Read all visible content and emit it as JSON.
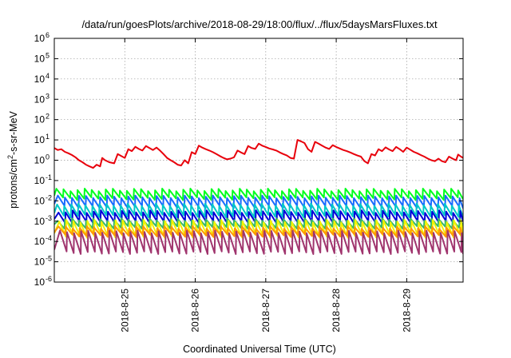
{
  "chart_data": {
    "type": "line",
    "title": "/data/run/goesPlots/archive/2018-08-29/18:00/flux/../flux/5daysMarsFluxes.txt",
    "xlabel": "Coordinated Universal Time (UTC)",
    "ylabel": {
      "base": "protons/cm",
      "sup": "2",
      "rest": "-s-sr-MeV"
    },
    "x_unit": "days since 2018-08-24 00:00 UTC",
    "xlim": [
      0.0,
      5.8
    ],
    "x_ticks": [
      {
        "x": 1,
        "label": "2018-8-25"
      },
      {
        "x": 2,
        "label": "2018-8-26"
      },
      {
        "x": 3,
        "label": "2018-8-27"
      },
      {
        "x": 4,
        "label": "2018-8-28"
      },
      {
        "x": 5,
        "label": "2018-8-29"
      }
    ],
    "yscale": "log",
    "ylim": [
      1e-06,
      1000000.0
    ],
    "y_ticks": [
      {
        "exp": -6,
        "label": "10"
      },
      {
        "exp": -5,
        "label": "10"
      },
      {
        "exp": -4,
        "label": "10"
      },
      {
        "exp": -3,
        "label": "10"
      },
      {
        "exp": -2,
        "label": "10"
      },
      {
        "exp": -1,
        "label": "10"
      },
      {
        "exp": 0,
        "label": "10"
      },
      {
        "exp": 1,
        "label": "10"
      },
      {
        "exp": 2,
        "label": "10"
      },
      {
        "exp": 3,
        "label": "10"
      },
      {
        "exp": 4,
        "label": "10"
      },
      {
        "exp": 5,
        "label": "10"
      },
      {
        "exp": 6,
        "label": "10"
      }
    ],
    "grid": true,
    "legend": "none",
    "series": [
      {
        "color": "#e8000b",
        "sawtooth": false,
        "points": [
          [
            0.0,
            4.0
          ],
          [
            0.05,
            3.2
          ],
          [
            0.1,
            3.5
          ],
          [
            0.15,
            2.6
          ],
          [
            0.2,
            2.2
          ],
          [
            0.25,
            1.8
          ],
          [
            0.3,
            1.4
          ],
          [
            0.35,
            1.0
          ],
          [
            0.4,
            0.8
          ],
          [
            0.45,
            0.6
          ],
          [
            0.5,
            0.5
          ],
          [
            0.55,
            0.42
          ],
          [
            0.6,
            0.6
          ],
          [
            0.65,
            0.5
          ],
          [
            0.68,
            1.3
          ],
          [
            0.72,
            1.0
          ],
          [
            0.78,
            0.8
          ],
          [
            0.85,
            0.7
          ],
          [
            0.9,
            2.0
          ],
          [
            0.95,
            1.6
          ],
          [
            1.0,
            1.3
          ],
          [
            1.05,
            3.5
          ],
          [
            1.1,
            2.8
          ],
          [
            1.15,
            4.6
          ],
          [
            1.2,
            3.6
          ],
          [
            1.25,
            3.0
          ],
          [
            1.3,
            5.0
          ],
          [
            1.35,
            4.0
          ],
          [
            1.4,
            3.2
          ],
          [
            1.45,
            4.2
          ],
          [
            1.5,
            3.0
          ],
          [
            1.55,
            2.0
          ],
          [
            1.6,
            1.3
          ],
          [
            1.65,
            1.0
          ],
          [
            1.7,
            0.8
          ],
          [
            1.75,
            0.6
          ],
          [
            1.8,
            0.55
          ],
          [
            1.85,
            1.0
          ],
          [
            1.9,
            0.7
          ],
          [
            1.95,
            2.5
          ],
          [
            2.0,
            2.0
          ],
          [
            2.05,
            5.2
          ],
          [
            2.1,
            4.2
          ],
          [
            2.15,
            3.5
          ],
          [
            2.2,
            3.0
          ],
          [
            2.25,
            2.5
          ],
          [
            2.3,
            2.0
          ],
          [
            2.35,
            1.6
          ],
          [
            2.4,
            1.3
          ],
          [
            2.45,
            1.1
          ],
          [
            2.5,
            1.2
          ],
          [
            2.55,
            1.4
          ],
          [
            2.6,
            3.0
          ],
          [
            2.65,
            2.4
          ],
          [
            2.7,
            2.0
          ],
          [
            2.75,
            5.0
          ],
          [
            2.8,
            4.0
          ],
          [
            2.85,
            3.6
          ],
          [
            2.9,
            6.5
          ],
          [
            2.95,
            5.2
          ],
          [
            3.0,
            4.5
          ],
          [
            3.05,
            3.8
          ],
          [
            3.1,
            3.4
          ],
          [
            3.15,
            3.0
          ],
          [
            3.2,
            2.4
          ],
          [
            3.25,
            2.0
          ],
          [
            3.3,
            1.7
          ],
          [
            3.35,
            1.3
          ],
          [
            3.4,
            1.2
          ],
          [
            3.45,
            10.0
          ],
          [
            3.5,
            8.5
          ],
          [
            3.55,
            7.0
          ],
          [
            3.6,
            3.5
          ],
          [
            3.65,
            2.6
          ],
          [
            3.7,
            8.0
          ],
          [
            3.75,
            6.5
          ],
          [
            3.8,
            5.2
          ],
          [
            3.85,
            4.2
          ],
          [
            3.9,
            3.6
          ],
          [
            3.95,
            5.5
          ],
          [
            4.0,
            4.5
          ],
          [
            4.05,
            3.8
          ],
          [
            4.1,
            3.2
          ],
          [
            4.15,
            2.8
          ],
          [
            4.2,
            2.4
          ],
          [
            4.25,
            2.0
          ],
          [
            4.3,
            1.7
          ],
          [
            4.35,
            1.5
          ],
          [
            4.4,
            0.9
          ],
          [
            4.45,
            0.7
          ],
          [
            4.5,
            2.0
          ],
          [
            4.55,
            1.7
          ],
          [
            4.6,
            3.5
          ],
          [
            4.65,
            2.8
          ],
          [
            4.7,
            4.3
          ],
          [
            4.75,
            3.4
          ],
          [
            4.8,
            2.8
          ],
          [
            4.85,
            4.5
          ],
          [
            4.9,
            3.5
          ],
          [
            4.95,
            2.6
          ],
          [
            5.0,
            4.2
          ],
          [
            5.05,
            3.3
          ],
          [
            5.1,
            2.6
          ],
          [
            5.15,
            2.2
          ],
          [
            5.2,
            1.8
          ],
          [
            5.25,
            1.5
          ],
          [
            5.3,
            1.2
          ],
          [
            5.35,
            1.0
          ],
          [
            5.4,
            0.9
          ],
          [
            5.45,
            1.2
          ],
          [
            5.5,
            0.9
          ],
          [
            5.55,
            0.8
          ],
          [
            5.6,
            1.5
          ],
          [
            5.65,
            1.2
          ],
          [
            5.7,
            1.0
          ],
          [
            5.73,
            1.9
          ],
          [
            5.77,
            1.5
          ],
          [
            5.8,
            1.3
          ]
        ]
      },
      {
        "color": "#00ff1e",
        "sawtooth": true,
        "x_start": 0.03,
        "period": 0.1,
        "low": 0.013,
        "high": 0.035
      },
      {
        "color": "#1a6bff",
        "sawtooth": true,
        "x_start": 0.05,
        "period": 0.1,
        "low": 0.005,
        "high": 0.016
      },
      {
        "color": "#00c8c8",
        "sawtooth": true,
        "x_start": 0.04,
        "period": 0.1,
        "low": 0.0018,
        "high": 0.0065
      },
      {
        "color": "#0000d8",
        "sawtooth": true,
        "x_start": 0.06,
        "period": 0.1,
        "low": 0.0009,
        "high": 0.003
      },
      {
        "color": "#36b86b",
        "sawtooth": true,
        "x_start": 0.05,
        "period": 0.1,
        "low": 0.0005,
        "high": 0.0012
      },
      {
        "color": "#f2f200",
        "sawtooth": true,
        "x_start": 0.07,
        "period": 0.1,
        "low": 0.00018,
        "high": 0.001
      },
      {
        "color": "#ff9900",
        "sawtooth": true,
        "x_start": 0.06,
        "period": 0.1,
        "low": 0.0002,
        "high": 0.0005
      },
      {
        "color": "#a0356e",
        "sawtooth": true,
        "x_start": 0.08,
        "period": 0.1,
        "low": 2.8e-05,
        "high": 0.0003
      }
    ]
  }
}
